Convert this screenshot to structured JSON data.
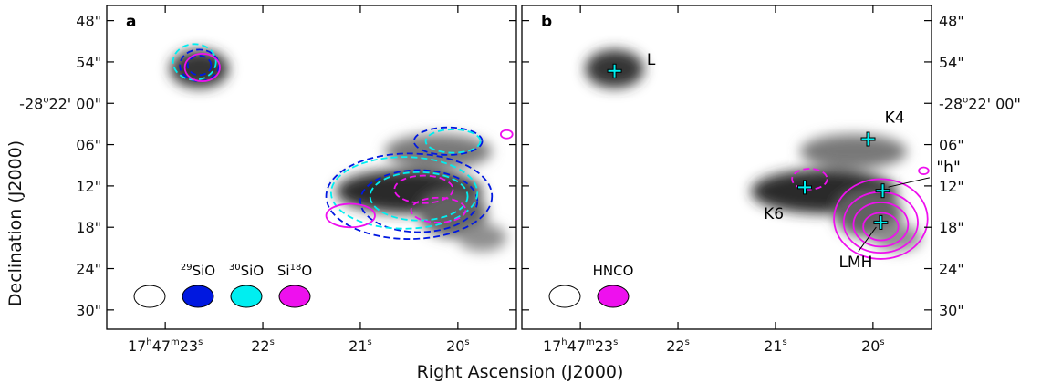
{
  "chart_data": {
    "type": "contour-map",
    "xlabel": "Right Ascension (J2000)",
    "ylabel": "Declination (J2000)",
    "x_ticks": [
      {
        "ra_s": 23,
        "h": "17",
        "m": "47",
        "s": "23"
      },
      {
        "ra_s": 22,
        "s": "22"
      },
      {
        "ra_s": 21,
        "s": "21"
      },
      {
        "ra_s": 20,
        "s": "20"
      }
    ],
    "y_ticks": [
      {
        "dec_as": 48,
        "label": "48\""
      },
      {
        "dec_as": 54,
        "label": "54\""
      },
      {
        "dec_as": 60,
        "label_pre": "-28",
        "label_deg": "o",
        "label_post": "22' 00\""
      },
      {
        "dec_as": 66,
        "label": "06\""
      },
      {
        "dec_as": 72,
        "label": "12\""
      },
      {
        "dec_as": 78,
        "label": "18\""
      },
      {
        "dec_as": 84,
        "label": "24\""
      },
      {
        "dec_as": 90,
        "label": "30\""
      }
    ],
    "ra_range": [
      23.6,
      19.4
    ],
    "dec_range": [
      45.8,
      92.8
    ],
    "panels": [
      {
        "label": "a",
        "legend": [
          {
            "name": "beam",
            "color": "#ffffff",
            "text": ""
          },
          {
            "name": "29SiO",
            "color": "#0018e0",
            "iso": "29",
            "mol": "SiO",
            "iso_after": "",
            "mol_after": ""
          },
          {
            "name": "30SiO",
            "color": "#00eef0",
            "iso": "30",
            "mol": "SiO",
            "iso_after": "",
            "mol_after": ""
          },
          {
            "name": "Si18O",
            "color": "#ee10ee",
            "iso": "",
            "mol": "Si",
            "iso_after": "18",
            "mol_after": "O"
          }
        ],
        "contours": [
          {
            "series": "29SiO",
            "style": "dashed",
            "ra": 22.65,
            "dec": 54.5,
            "rx_s": 0.2,
            "ry_as": 2.3
          },
          {
            "series": "29SiO",
            "style": "dashed",
            "ra": 22.65,
            "dec": 54.5,
            "rx_s": 0.12,
            "ry_as": 1.4
          },
          {
            "series": "30SiO",
            "style": "dashed",
            "ra": 22.7,
            "dec": 54.0,
            "rx_s": 0.22,
            "ry_as": 2.6
          },
          {
            "series": "Si18O",
            "style": "solid",
            "ra": 22.62,
            "dec": 54.8,
            "rx_s": 0.18,
            "ry_as": 2.0
          },
          {
            "series": "29SiO",
            "style": "dashed",
            "ra": 20.5,
            "dec": 73.5,
            "rx_s": 0.85,
            "ry_as": 6.2
          },
          {
            "series": "29SiO",
            "style": "dashed",
            "ra": 20.4,
            "dec": 74.2,
            "rx_s": 0.6,
            "ry_as": 4.5
          },
          {
            "series": "29SiO",
            "style": "dashed",
            "ra": 20.1,
            "dec": 65.5,
            "rx_s": 0.35,
            "ry_as": 2.0
          },
          {
            "series": "30SiO",
            "style": "dashed",
            "ra": 20.55,
            "dec": 73.0,
            "rx_s": 0.75,
            "ry_as": 5.2
          },
          {
            "series": "30SiO",
            "style": "dashed",
            "ra": 20.4,
            "dec": 73.5,
            "rx_s": 0.5,
            "ry_as": 3.5
          },
          {
            "series": "30SiO",
            "style": "dashed",
            "ra": 20.05,
            "dec": 65.5,
            "rx_s": 0.28,
            "ry_as": 1.7
          },
          {
            "series": "Si18O",
            "style": "dashed",
            "ra": 20.35,
            "dec": 72.5,
            "rx_s": 0.3,
            "ry_as": 2.0
          },
          {
            "series": "Si18O",
            "style": "dashed",
            "ra": 20.2,
            "dec": 75.5,
            "rx_s": 0.28,
            "ry_as": 1.8
          },
          {
            "series": "Si18O",
            "style": "solid",
            "ra": 21.1,
            "dec": 76.3,
            "rx_s": 0.25,
            "ry_as": 1.7
          },
          {
            "series": "Si18O",
            "style": "solid",
            "ra": 19.5,
            "dec": 64.5,
            "rx_s": 0.06,
            "ry_as": 0.6
          }
        ],
        "markers": [],
        "source_labels": []
      },
      {
        "label": "b",
        "legend": [
          {
            "name": "beam",
            "color": "#ffffff",
            "text": ""
          },
          {
            "name": "HNCO",
            "color": "#ee10ee",
            "iso": "",
            "mol": "HNCO",
            "iso_after": "",
            "mol_after": ""
          }
        ],
        "contours": [
          {
            "series": "HNCO",
            "style": "solid",
            "ra": 19.92,
            "dec": 76.8,
            "rx_s": 0.48,
            "ry_as": 5.8
          },
          {
            "series": "HNCO",
            "style": "solid",
            "ra": 19.92,
            "dec": 77.3,
            "rx_s": 0.38,
            "ry_as": 4.4
          },
          {
            "series": "HNCO",
            "style": "solid",
            "ra": 19.92,
            "dec": 77.6,
            "rx_s": 0.28,
            "ry_as": 3.2
          },
          {
            "series": "HNCO",
            "style": "solid",
            "ra": 19.92,
            "dec": 77.9,
            "rx_s": 0.18,
            "ry_as": 2.0
          },
          {
            "series": "HNCO",
            "style": "dashed",
            "ra": 20.65,
            "dec": 71.0,
            "rx_s": 0.18,
            "ry_as": 1.5
          },
          {
            "series": "HNCO",
            "style": "solid",
            "ra": 19.48,
            "dec": 69.8,
            "rx_s": 0.05,
            "ry_as": 0.5
          }
        ],
        "markers": [
          {
            "name": "L",
            "ra": 22.65,
            "dec": 55.3
          },
          {
            "name": "K4",
            "ra": 20.05,
            "dec": 65.2
          },
          {
            "name": "K6",
            "ra": 20.7,
            "dec": 72.2
          },
          {
            "name": "h",
            "ra": 19.9,
            "dec": 72.7
          },
          {
            "name": "LMH",
            "ra": 19.92,
            "dec": 77.3
          }
        ],
        "source_labels": [
          {
            "text": "L",
            "ra": 22.32,
            "dec": 54.4
          },
          {
            "text": "K4",
            "ra": 19.88,
            "dec": 62.8
          },
          {
            "text": "K6",
            "ra": 21.12,
            "dec": 76.8
          },
          {
            "text": "\"h\"",
            "ra": 19.35,
            "dec": 70.0
          },
          {
            "text": "LMH",
            "ra": 20.35,
            "dec": 83.8
          }
        ]
      }
    ],
    "grayscale_sources": [
      {
        "ra": 22.65,
        "dec": 55.0,
        "rx_s": 0.3,
        "ry_as": 2.8,
        "peak": 0.9
      },
      {
        "ra": 20.2,
        "dec": 67.0,
        "rx_s": 0.55,
        "ry_as": 2.5,
        "peak": 0.6
      },
      {
        "ra": 20.5,
        "dec": 72.8,
        "rx_s": 0.75,
        "ry_as": 3.2,
        "peak": 0.95
      },
      {
        "ra": 20.05,
        "dec": 76.0,
        "rx_s": 0.35,
        "ry_as": 3.5,
        "peak": 0.7
      },
      {
        "ra": 19.75,
        "dec": 79.5,
        "rx_s": 0.25,
        "ry_as": 2.0,
        "peak": 0.5
      }
    ]
  },
  "colors": {
    "sio29": "#0018e0",
    "sio30": "#00eef0",
    "si18o": "#ee10ee",
    "hnco": "#ee10ee",
    "marker": "#00f0f0"
  }
}
